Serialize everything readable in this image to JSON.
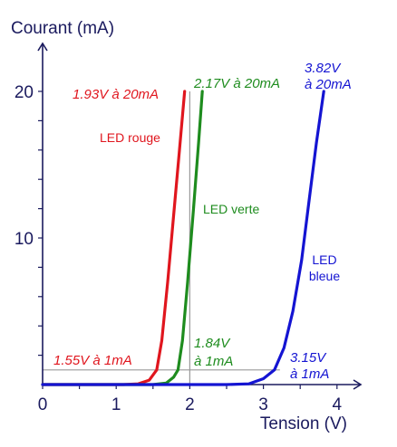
{
  "chart_data": {
    "type": "line",
    "title": "",
    "xlabel": "Tension (V)",
    "ylabel": "Courant (mA)",
    "xlim": [
      0,
      4.3
    ],
    "ylim": [
      0,
      20.5
    ],
    "x_ticks": [
      0,
      1,
      2,
      3,
      4
    ],
    "y_ticks": [
      10,
      20
    ],
    "grid": false,
    "series": [
      {
        "name": "LED rouge",
        "color": "#e0161e",
        "points": [
          [
            0,
            0
          ],
          [
            1.1,
            0
          ],
          [
            1.3,
            0.05
          ],
          [
            1.45,
            0.3
          ],
          [
            1.55,
            1.0
          ],
          [
            1.62,
            3.0
          ],
          [
            1.7,
            7.0
          ],
          [
            1.78,
            11.5
          ],
          [
            1.86,
            16.0
          ],
          [
            1.93,
            20.0
          ]
        ]
      },
      {
        "name": "LED verte",
        "color": "#1e8c1e",
        "points": [
          [
            0,
            0
          ],
          [
            1.5,
            0
          ],
          [
            1.68,
            0.1
          ],
          [
            1.78,
            0.5
          ],
          [
            1.84,
            1.0
          ],
          [
            1.9,
            3.0
          ],
          [
            1.97,
            7.0
          ],
          [
            2.05,
            12.0
          ],
          [
            2.12,
            16.5
          ],
          [
            2.17,
            20.0
          ]
        ]
      },
      {
        "name": "LED bleue",
        "color": "#1414d2",
        "points": [
          [
            0,
            0
          ],
          [
            2.5,
            0
          ],
          [
            2.8,
            0.05
          ],
          [
            3.0,
            0.4
          ],
          [
            3.15,
            1.0
          ],
          [
            3.28,
            2.5
          ],
          [
            3.4,
            5.0
          ],
          [
            3.52,
            8.5
          ],
          [
            3.62,
            12.5
          ],
          [
            3.72,
            16.5
          ],
          [
            3.82,
            20.0
          ]
        ]
      }
    ],
    "guides": [
      {
        "type": "hline",
        "y": 1,
        "x_from": 0,
        "x_to": 3.15,
        "color": "#9a9a9a"
      },
      {
        "type": "vline",
        "x": 2.0,
        "y_from": 0,
        "y_to": 20,
        "color": "#9a9a9a"
      }
    ],
    "series_labels": [
      {
        "series": 0,
        "lines": [
          "LED rouge"
        ]
      },
      {
        "series": 1,
        "lines": [
          "LED verte"
        ]
      },
      {
        "series": 2,
        "lines": [
          "LED",
          "bleue"
        ]
      }
    ],
    "annotations": [
      {
        "series": 0,
        "lines": [
          "1.93V à 20mA"
        ]
      },
      {
        "series": 1,
        "lines": [
          "2.17V à 20mA"
        ]
      },
      {
        "series": 2,
        "lines": [
          "3.82V",
          "à 20mA"
        ]
      },
      {
        "series": 0,
        "lines": [
          "1.55V à 1mA"
        ]
      },
      {
        "series": 1,
        "lines": [
          "1.84V",
          "à 1mA"
        ]
      },
      {
        "series": 2,
        "lines": [
          "3.15V",
          "à 1mA"
        ]
      }
    ],
    "axis_color": "#1a1a5e"
  }
}
